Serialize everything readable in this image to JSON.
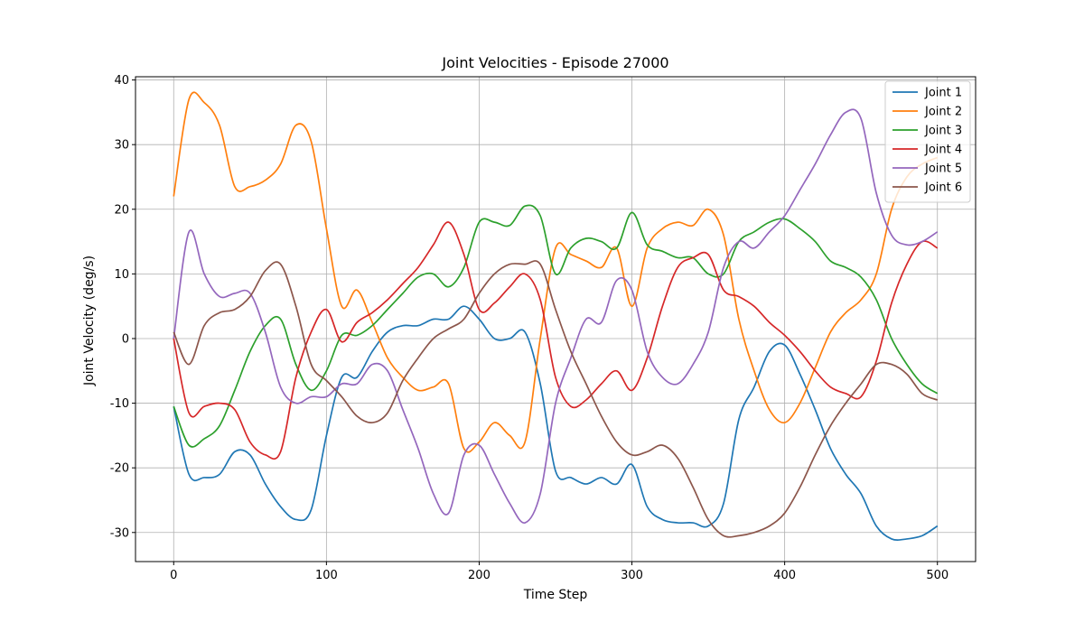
{
  "chart_data": {
    "type": "line",
    "title": "Joint Velocities - Episode 27000",
    "xlabel": "Time Step",
    "ylabel": "Joint Velocity (deg/s)",
    "xlim": [
      -25,
      525
    ],
    "ylim": [
      -34.5,
      40.5
    ],
    "xticks": [
      0,
      100,
      200,
      300,
      400,
      500
    ],
    "yticks": [
      -30,
      -20,
      -10,
      0,
      10,
      20,
      30,
      40
    ],
    "grid": true,
    "legend_position": "top-right",
    "x": [
      0,
      10,
      20,
      30,
      40,
      50,
      60,
      70,
      80,
      90,
      100,
      110,
      120,
      130,
      140,
      150,
      160,
      170,
      180,
      190,
      200,
      210,
      220,
      230,
      240,
      250,
      260,
      270,
      280,
      290,
      300,
      310,
      320,
      330,
      340,
      350,
      360,
      370,
      380,
      390,
      400,
      410,
      420,
      430,
      440,
      450,
      460,
      470,
      480,
      490,
      500
    ],
    "series": [
      {
        "name": "Joint 1",
        "color": "#1f77b4",
        "values": [
          -10.5,
          -21,
          -21.5,
          -21,
          -17.5,
          -18,
          -22.5,
          -26,
          -28,
          -26.5,
          -15,
          -6,
          -6,
          -2,
          1,
          2,
          2,
          3,
          3,
          5,
          3,
          0,
          0,
          1,
          -7,
          -20.5,
          -21.5,
          -22.5,
          -21.5,
          -22.5,
          -19.5,
          -26,
          -28,
          -28.5,
          -28.5,
          -29,
          -25.5,
          -12.5,
          -7.5,
          -2,
          -1,
          -5.5,
          -11,
          -17,
          -21,
          -24,
          -29,
          -31,
          -31,
          -30.5,
          -29
        ]
      },
      {
        "name": "Joint 2",
        "color": "#ff7f0e",
        "values": [
          22,
          37,
          36.5,
          33,
          23.5,
          23.5,
          24.5,
          27,
          33,
          30.5,
          17,
          5,
          7.5,
          2.5,
          -3,
          -6,
          -8,
          -7.5,
          -7,
          -17,
          -16,
          -13,
          -15,
          -16,
          0,
          14,
          13,
          12,
          11,
          14,
          5,
          14,
          17,
          18,
          17.5,
          20,
          16,
          3,
          -5,
          -11,
          -13,
          -10,
          -4.5,
          1,
          4,
          6,
          10,
          20,
          25,
          27,
          28
        ]
      },
      {
        "name": "Joint 3",
        "color": "#2ca02c",
        "values": [
          -10.5,
          -16.5,
          -15.5,
          -13.5,
          -8,
          -2,
          2,
          3,
          -4,
          -8,
          -5,
          0.5,
          0.5,
          2,
          4.5,
          7,
          9.5,
          10,
          8,
          11,
          18,
          18,
          17.5,
          20.5,
          19,
          10,
          14,
          15.5,
          15,
          14,
          19.5,
          14.5,
          13.5,
          12.5,
          12.5,
          10,
          10,
          15,
          16.5,
          18,
          18.5,
          17,
          15,
          12,
          11,
          9.5,
          6,
          0,
          -4,
          -7,
          -8.5
        ]
      },
      {
        "name": "Joint 4",
        "color": "#d62728",
        "values": [
          0,
          -11.5,
          -10.5,
          -10,
          -11,
          -16,
          -18,
          -17.5,
          -6,
          1,
          4.5,
          -0.5,
          2.5,
          4,
          6,
          8.5,
          11,
          14.5,
          18,
          13,
          4.5,
          5.5,
          8,
          10,
          6,
          -6,
          -10.5,
          -9.5,
          -7,
          -5,
          -8,
          -3,
          5,
          11,
          12.5,
          13,
          7.5,
          6.5,
          5,
          2.5,
          0.5,
          -2,
          -5,
          -7.5,
          -8.5,
          -9,
          -3.5,
          5.5,
          11.5,
          15,
          14
        ]
      },
      {
        "name": "Joint 5",
        "color": "#9467bd",
        "values": [
          0,
          16.5,
          10,
          6.5,
          7,
          7,
          1,
          -7.5,
          -10,
          -9,
          -9,
          -7,
          -7,
          -4,
          -5,
          -11,
          -17,
          -24,
          -27,
          -18,
          -16.5,
          -21,
          -25.5,
          -28.5,
          -24,
          -10,
          -3,
          3,
          2.5,
          9,
          7.5,
          -2,
          -6,
          -7,
          -4,
          1,
          11,
          15,
          14,
          16.5,
          19,
          23,
          27,
          31.5,
          35,
          34,
          22.5,
          16,
          14.5,
          15,
          16.5
        ]
      },
      {
        "name": "Joint 6",
        "color": "#8c564b",
        "values": [
          1,
          -4,
          2,
          4,
          4.5,
          6.5,
          10.5,
          11.5,
          5,
          -4,
          -6.5,
          -9,
          -12,
          -13,
          -11.5,
          -6.5,
          -3,
          0,
          1.5,
          3,
          7,
          10,
          11.5,
          11.5,
          11.5,
          4.5,
          -2,
          -7,
          -12,
          -16,
          -18,
          -17.5,
          -16.5,
          -18.5,
          -23,
          -28,
          -30.5,
          -30.5,
          -30,
          -29,
          -27,
          -23,
          -18,
          -13.5,
          -10,
          -7,
          -4,
          -4,
          -5.5,
          -8.5,
          -9.5
        ]
      }
    ]
  }
}
